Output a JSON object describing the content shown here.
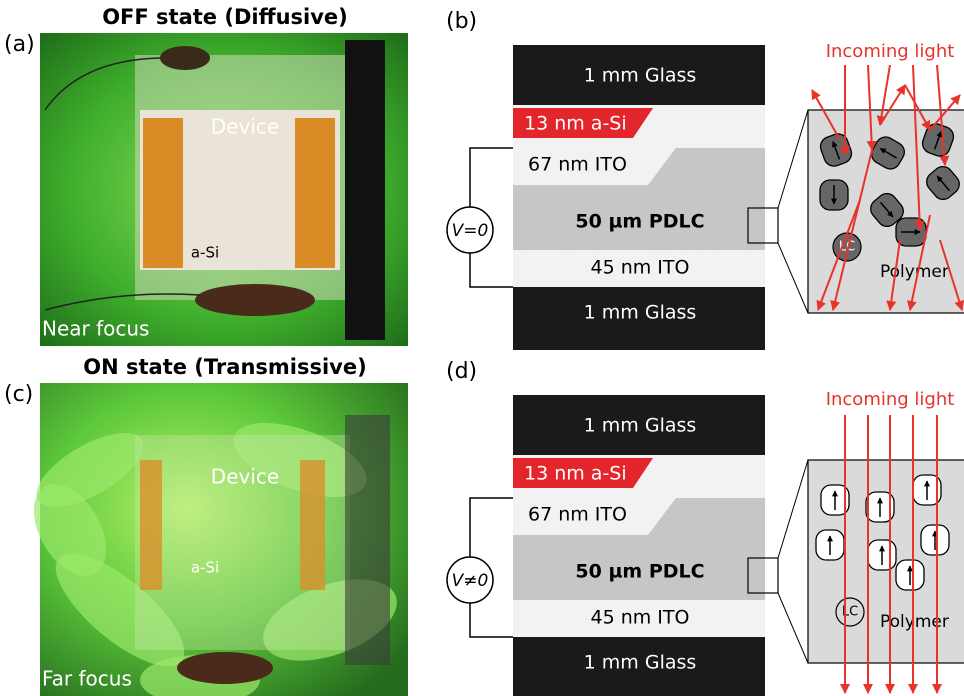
{
  "panels": [
    {
      "label": "(a)",
      "title": "OFF state (Diffusive)",
      "device": "Device",
      "a_si": "a-Si",
      "focus": "Near focus"
    },
    {
      "label": "(b)",
      "layers": [
        "1 mm Glass",
        "13 nm a-Si",
        "67 nm ITO",
        "50 µm PDLC",
        "45 nm ITO",
        "1 mm Glass"
      ],
      "voltage": "V=0",
      "incoming": "Incoming light",
      "lc": "LC",
      "polymer": "Polymer"
    },
    {
      "label": "(c)",
      "title": "ON state (Transmissive)",
      "device": "Device",
      "a_si": "a-Si",
      "focus": "Far focus"
    },
    {
      "label": "(d)",
      "layers": [
        "1 mm Glass",
        "13 nm a-Si",
        "67 nm ITO",
        "50 µm PDLC",
        "45 nm ITO",
        "1 mm Glass"
      ],
      "voltage": "V≠0",
      "incoming": "Incoming light",
      "lc": "LC",
      "polymer": "Polymer"
    }
  ]
}
